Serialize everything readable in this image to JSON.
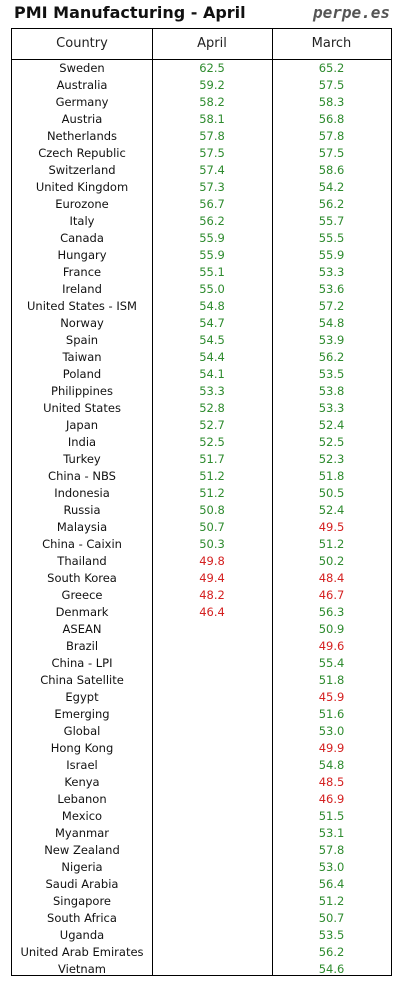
{
  "header": {
    "title": "PMI Manufacturing - April",
    "brand": "perpe.es"
  },
  "colors": {
    "above_50": "#2e8b2e",
    "below_50": "#d42020"
  },
  "chart_data": {
    "type": "table",
    "columns": [
      "Country",
      "April",
      "March"
    ],
    "threshold": 50,
    "rows": [
      {
        "country": "Sweden",
        "april": 62.5,
        "march": 65.2
      },
      {
        "country": "Australia",
        "april": 59.2,
        "march": 57.5
      },
      {
        "country": "Germany",
        "april": 58.2,
        "march": 58.3
      },
      {
        "country": "Austria",
        "april": 58.1,
        "march": 56.8
      },
      {
        "country": "Netherlands",
        "april": 57.8,
        "march": 57.8
      },
      {
        "country": "Czech Republic",
        "april": 57.5,
        "march": 57.5
      },
      {
        "country": "Switzerland",
        "april": 57.4,
        "march": 58.6
      },
      {
        "country": "United Kingdom",
        "april": 57.3,
        "march": 54.2
      },
      {
        "country": "Eurozone",
        "april": 56.7,
        "march": 56.2
      },
      {
        "country": "Italy",
        "april": 56.2,
        "march": 55.7
      },
      {
        "country": "Canada",
        "april": 55.9,
        "march": 55.5
      },
      {
        "country": "Hungary",
        "april": 55.9,
        "march": 55.9
      },
      {
        "country": "France",
        "april": 55.1,
        "march": 53.3
      },
      {
        "country": "Ireland",
        "april": 55.0,
        "march": 53.6
      },
      {
        "country": "United States - ISM",
        "april": 54.8,
        "march": 57.2
      },
      {
        "country": "Norway",
        "april": 54.7,
        "march": 54.8
      },
      {
        "country": "Spain",
        "april": 54.5,
        "march": 53.9
      },
      {
        "country": "Taiwan",
        "april": 54.4,
        "march": 56.2
      },
      {
        "country": "Poland",
        "april": 54.1,
        "march": 53.5
      },
      {
        "country": "Philippines",
        "april": 53.3,
        "march": 53.8
      },
      {
        "country": "United States",
        "april": 52.8,
        "march": 53.3
      },
      {
        "country": "Japan",
        "april": 52.7,
        "march": 52.4
      },
      {
        "country": "India",
        "april": 52.5,
        "march": 52.5
      },
      {
        "country": "Turkey",
        "april": 51.7,
        "march": 52.3
      },
      {
        "country": "China - NBS",
        "april": 51.2,
        "march": 51.8
      },
      {
        "country": "Indonesia",
        "april": 51.2,
        "march": 50.5
      },
      {
        "country": "Russia",
        "april": 50.8,
        "march": 52.4
      },
      {
        "country": "Malaysia",
        "april": 50.7,
        "march": 49.5
      },
      {
        "country": "China - Caixin",
        "april": 50.3,
        "march": 51.2
      },
      {
        "country": "Thailand",
        "april": 49.8,
        "march": 50.2
      },
      {
        "country": "South Korea",
        "april": 49.4,
        "march": 48.4
      },
      {
        "country": "Greece",
        "april": 48.2,
        "march": 46.7
      },
      {
        "country": "Denmark",
        "april": 46.4,
        "march": 56.3
      },
      {
        "country": "ASEAN",
        "april": null,
        "march": 50.9
      },
      {
        "country": "Brazil",
        "april": null,
        "march": 49.6
      },
      {
        "country": "China - LPI",
        "april": null,
        "march": 55.4
      },
      {
        "country": "China Satellite",
        "april": null,
        "march": 51.8
      },
      {
        "country": "Egypt",
        "april": null,
        "march": 45.9
      },
      {
        "country": "Emerging",
        "april": null,
        "march": 51.6
      },
      {
        "country": "Global",
        "april": null,
        "march": 53.0
      },
      {
        "country": "Hong Kong",
        "april": null,
        "march": 49.9
      },
      {
        "country": "Israel",
        "april": null,
        "march": 54.8
      },
      {
        "country": "Kenya",
        "april": null,
        "march": 48.5
      },
      {
        "country": "Lebanon",
        "april": null,
        "march": 46.9
      },
      {
        "country": "Mexico",
        "april": null,
        "march": 51.5
      },
      {
        "country": "Myanmar",
        "april": null,
        "march": 53.1
      },
      {
        "country": "New Zealand",
        "april": null,
        "march": 57.8
      },
      {
        "country": "Nigeria",
        "april": null,
        "march": 53.0
      },
      {
        "country": "Saudi Arabia",
        "april": null,
        "march": 56.4
      },
      {
        "country": "Singapore",
        "april": null,
        "march": 51.2
      },
      {
        "country": "South Africa",
        "april": null,
        "march": 50.7
      },
      {
        "country": "Uganda",
        "april": null,
        "march": 53.5
      },
      {
        "country": "United Arab Emirates",
        "april": null,
        "march": 56.2
      },
      {
        "country": "Vietnam",
        "april": null,
        "march": 54.6
      }
    ]
  }
}
